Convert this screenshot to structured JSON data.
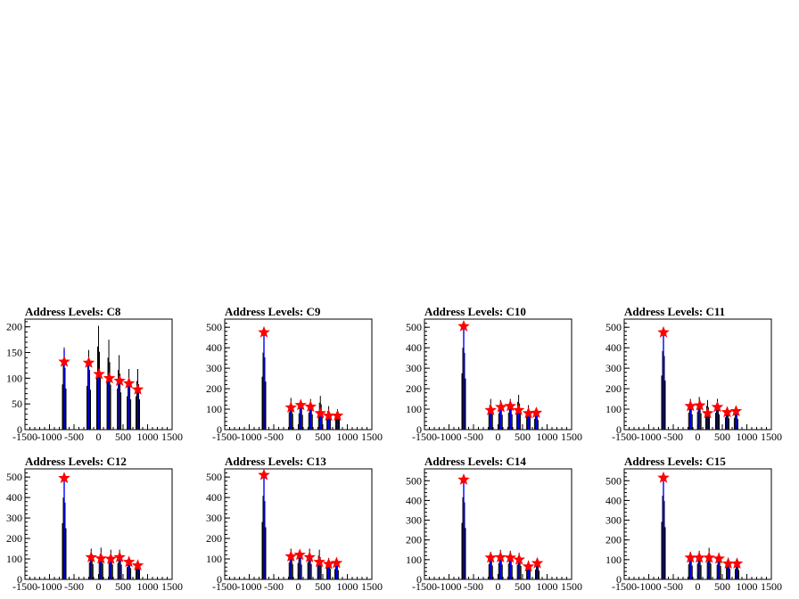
{
  "colors": {
    "histogram": "#000000",
    "fill_line": "#0000ff",
    "marker": "#ff0000",
    "frame": "#000000"
  },
  "marker_icon": "red-star-marker",
  "chart_data": [
    {
      "type": "histogram",
      "title": "Address Levels: C8",
      "xlim": [
        -1500,
        1500
      ],
      "ylim": [
        0,
        215
      ],
      "xticks": [
        "-1500",
        "-1000",
        "-500",
        "0",
        "500",
        "1000",
        "1500"
      ],
      "yticks": [
        "0",
        "50",
        "100",
        "150",
        "200"
      ],
      "peaks": [
        {
          "x": -700,
          "y": 160,
          "blue": 155
        },
        {
          "x": -200,
          "y": 155,
          "blue": 130
        },
        {
          "x": 0,
          "y": 202,
          "blue": 110
        },
        {
          "x": 210,
          "y": 175,
          "blue": 100
        },
        {
          "x": 420,
          "y": 145,
          "blue": 95
        },
        {
          "x": 620,
          "y": 118,
          "blue": 88
        },
        {
          "x": 800,
          "y": 118,
          "blue": 75
        }
      ],
      "markers": [
        {
          "x": -700,
          "y": 132
        },
        {
          "x": -200,
          "y": 130
        },
        {
          "x": 10,
          "y": 108
        },
        {
          "x": 220,
          "y": 100
        },
        {
          "x": 430,
          "y": 95
        },
        {
          "x": 620,
          "y": 90
        },
        {
          "x": 800,
          "y": 78
        }
      ]
    },
    {
      "type": "histogram",
      "title": "Address Levels: C9",
      "xlim": [
        -1500,
        1500
      ],
      "ylim": [
        0,
        540
      ],
      "xticks": [
        "-1500",
        "-1000",
        "-500",
        "0",
        "500",
        "1000",
        "1500"
      ],
      "yticks": [
        "0",
        "100",
        "200",
        "300",
        "400",
        "500"
      ],
      "peaks": [
        {
          "x": -700,
          "y": 470,
          "blue": 465
        },
        {
          "x": -150,
          "y": 155,
          "blue": 110
        },
        {
          "x": 50,
          "y": 145,
          "blue": 120
        },
        {
          "x": 250,
          "y": 150,
          "blue": 115
        },
        {
          "x": 450,
          "y": 165,
          "blue": 85
        },
        {
          "x": 620,
          "y": 115,
          "blue": 65
        },
        {
          "x": 800,
          "y": 100,
          "blue": 65
        }
      ],
      "markers": [
        {
          "x": -700,
          "y": 475
        },
        {
          "x": -150,
          "y": 108
        },
        {
          "x": 50,
          "y": 120
        },
        {
          "x": 250,
          "y": 112
        },
        {
          "x": 450,
          "y": 80
        },
        {
          "x": 620,
          "y": 68
        },
        {
          "x": 800,
          "y": 68
        }
      ]
    },
    {
      "type": "histogram",
      "title": "Address Levels: C10",
      "xlim": [
        -1500,
        1500
      ],
      "ylim": [
        0,
        540
      ],
      "xticks": [
        "-1500",
        "-1000",
        "-500",
        "0",
        "500",
        "1000",
        "1500"
      ],
      "yticks": [
        "0",
        "100",
        "200",
        "300",
        "400",
        "500"
      ],
      "peaks": [
        {
          "x": -700,
          "y": 500,
          "blue": 495
        },
        {
          "x": -150,
          "y": 150,
          "blue": 95
        },
        {
          "x": 50,
          "y": 145,
          "blue": 110
        },
        {
          "x": 250,
          "y": 150,
          "blue": 115
        },
        {
          "x": 420,
          "y": 170,
          "blue": 95
        },
        {
          "x": 620,
          "y": 120,
          "blue": 75
        },
        {
          "x": 780,
          "y": 95,
          "blue": 80
        }
      ],
      "markers": [
        {
          "x": -700,
          "y": 505
        },
        {
          "x": -150,
          "y": 95
        },
        {
          "x": 60,
          "y": 110
        },
        {
          "x": 250,
          "y": 115
        },
        {
          "x": 420,
          "y": 95
        },
        {
          "x": 620,
          "y": 80
        },
        {
          "x": 780,
          "y": 82
        }
      ]
    },
    {
      "type": "histogram",
      "title": "Address Levels: C11",
      "xlim": [
        -1500,
        1500
      ],
      "ylim": [
        0,
        540
      ],
      "xticks": [
        "-1500",
        "-1000",
        "-500",
        "0",
        "500",
        "1000",
        "1500"
      ],
      "yticks": [
        "0",
        "100",
        "200",
        "300",
        "400",
        "500"
      ],
      "peaks": [
        {
          "x": -700,
          "y": 480,
          "blue": 470
        },
        {
          "x": -150,
          "y": 150,
          "blue": 115
        },
        {
          "x": 30,
          "y": 160,
          "blue": 120
        },
        {
          "x": 200,
          "y": 145,
          "blue": 80
        },
        {
          "x": 400,
          "y": 150,
          "blue": 110
        },
        {
          "x": 600,
          "y": 110,
          "blue": 85
        },
        {
          "x": 780,
          "y": 105,
          "blue": 90
        }
      ],
      "markers": [
        {
          "x": -700,
          "y": 475
        },
        {
          "x": -150,
          "y": 115
        },
        {
          "x": 40,
          "y": 118
        },
        {
          "x": 200,
          "y": 80
        },
        {
          "x": 400,
          "y": 110
        },
        {
          "x": 600,
          "y": 85
        },
        {
          "x": 780,
          "y": 90
        }
      ]
    },
    {
      "type": "histogram",
      "title": "Address Levels: C12",
      "xlim": [
        -1500,
        1500
      ],
      "ylim": [
        0,
        540
      ],
      "xticks": [
        "-1500",
        "-1000",
        "-500",
        "0",
        "500",
        "1000",
        "1500"
      ],
      "yticks": [
        "0",
        "100",
        "200",
        "300",
        "400",
        "500"
      ],
      "peaks": [
        {
          "x": -700,
          "y": 500,
          "blue": 490
        },
        {
          "x": -150,
          "y": 150,
          "blue": 110
        },
        {
          "x": 50,
          "y": 155,
          "blue": 105
        },
        {
          "x": 250,
          "y": 145,
          "blue": 100
        },
        {
          "x": 430,
          "y": 145,
          "blue": 110
        },
        {
          "x": 620,
          "y": 110,
          "blue": 85
        },
        {
          "x": 800,
          "y": 95,
          "blue": 65
        }
      ],
      "markers": [
        {
          "x": -700,
          "y": 495
        },
        {
          "x": -150,
          "y": 108
        },
        {
          "x": 50,
          "y": 102
        },
        {
          "x": 250,
          "y": 100
        },
        {
          "x": 430,
          "y": 108
        },
        {
          "x": 620,
          "y": 85
        },
        {
          "x": 800,
          "y": 68
        }
      ]
    },
    {
      "type": "histogram",
      "title": "Address Levels: C13",
      "xlim": [
        -1500,
        1500
      ],
      "ylim": [
        0,
        540
      ],
      "xticks": [
        "-1500",
        "-1000",
        "-500",
        "0",
        "500",
        "1000",
        "1500"
      ],
      "yticks": [
        "0",
        "100",
        "200",
        "300",
        "400",
        "500"
      ],
      "peaks": [
        {
          "x": -700,
          "y": 510,
          "blue": 505
        },
        {
          "x": -150,
          "y": 150,
          "blue": 115
        },
        {
          "x": 30,
          "y": 145,
          "blue": 120
        },
        {
          "x": 230,
          "y": 150,
          "blue": 110
        },
        {
          "x": 430,
          "y": 145,
          "blue": 85
        },
        {
          "x": 620,
          "y": 105,
          "blue": 75
        },
        {
          "x": 780,
          "y": 90,
          "blue": 80
        }
      ],
      "markers": [
        {
          "x": -700,
          "y": 510
        },
        {
          "x": -150,
          "y": 112
        },
        {
          "x": 30,
          "y": 120
        },
        {
          "x": 230,
          "y": 108
        },
        {
          "x": 430,
          "y": 85
        },
        {
          "x": 620,
          "y": 75
        },
        {
          "x": 780,
          "y": 80
        }
      ]
    },
    {
      "type": "histogram",
      "title": "Address Levels: C14",
      "xlim": [
        -1500,
        1500
      ],
      "ylim": [
        0,
        560
      ],
      "xticks": [
        "-1500",
        "-1000",
        "-500",
        "0",
        "500",
        "1000",
        "1500"
      ],
      "yticks": [
        "0",
        "100",
        "200",
        "300",
        "400",
        "500"
      ],
      "peaks": [
        {
          "x": -700,
          "y": 520,
          "blue": 500
        },
        {
          "x": -150,
          "y": 140,
          "blue": 110
        },
        {
          "x": 50,
          "y": 150,
          "blue": 110
        },
        {
          "x": 250,
          "y": 145,
          "blue": 110
        },
        {
          "x": 430,
          "y": 135,
          "blue": 100
        },
        {
          "x": 620,
          "y": 95,
          "blue": 65
        },
        {
          "x": 800,
          "y": 90,
          "blue": 80
        }
      ],
      "markers": [
        {
          "x": -700,
          "y": 505
        },
        {
          "x": -150,
          "y": 110
        },
        {
          "x": 50,
          "y": 112
        },
        {
          "x": 250,
          "y": 110
        },
        {
          "x": 430,
          "y": 100
        },
        {
          "x": 620,
          "y": 65
        },
        {
          "x": 800,
          "y": 82
        }
      ]
    },
    {
      "type": "histogram",
      "title": "Address Levels: C15",
      "xlim": [
        -1500,
        1500
      ],
      "ylim": [
        0,
        560
      ],
      "xticks": [
        "-1500",
        "-1000",
        "-500",
        "0",
        "500",
        "1000",
        "1500"
      ],
      "yticks": [
        "0",
        "100",
        "200",
        "300",
        "400",
        "500"
      ],
      "peaks": [
        {
          "x": -700,
          "y": 530,
          "blue": 515
        },
        {
          "x": -150,
          "y": 140,
          "blue": 110
        },
        {
          "x": 30,
          "y": 145,
          "blue": 110
        },
        {
          "x": 230,
          "y": 160,
          "blue": 110
        },
        {
          "x": 430,
          "y": 135,
          "blue": 105
        },
        {
          "x": 620,
          "y": 110,
          "blue": 80
        },
        {
          "x": 800,
          "y": 95,
          "blue": 80
        }
      ],
      "markers": [
        {
          "x": -700,
          "y": 515
        },
        {
          "x": -150,
          "y": 110
        },
        {
          "x": 30,
          "y": 110
        },
        {
          "x": 230,
          "y": 110
        },
        {
          "x": 430,
          "y": 105
        },
        {
          "x": 620,
          "y": 80
        },
        {
          "x": 800,
          "y": 80
        }
      ]
    }
  ]
}
